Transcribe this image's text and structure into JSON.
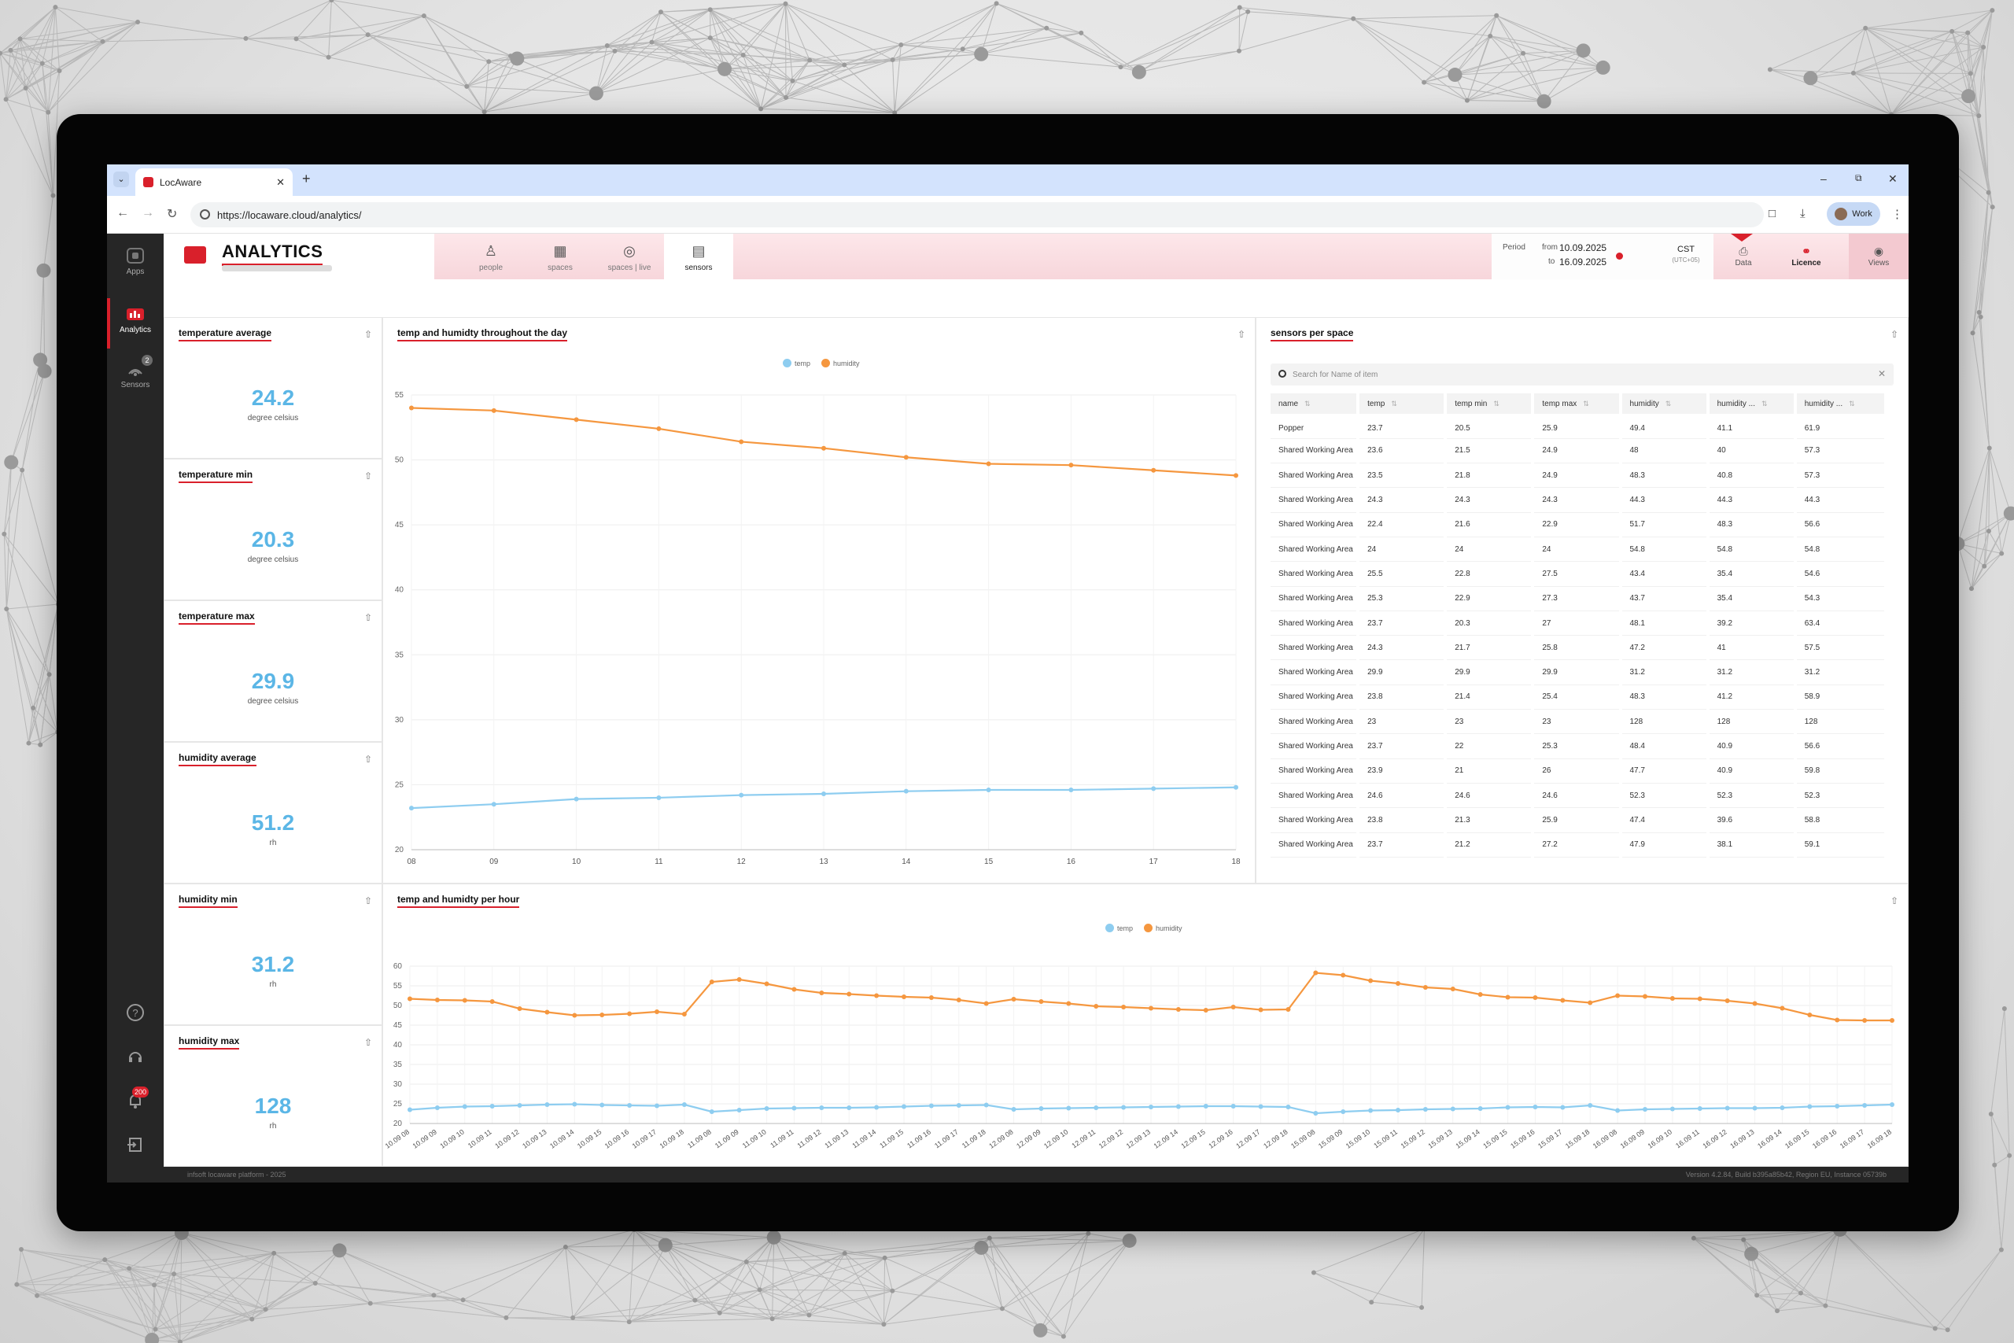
{
  "browser": {
    "tab_title": "LocAware",
    "url": "https://locaware.cloud/analytics/",
    "profile": "Work"
  },
  "sidebar": {
    "items": [
      {
        "label": "Apps",
        "icon": "apps-icon"
      },
      {
        "label": "Analytics",
        "icon": "analytics-icon"
      },
      {
        "label": "Sensors",
        "icon": "sensors-icon",
        "badge": "2"
      }
    ],
    "notifications_badge": "200"
  },
  "header": {
    "title": "ANALYTICS",
    "tabs": [
      {
        "label": "people",
        "icon": "people-icon"
      },
      {
        "label": "spaces",
        "icon": "spaces-icon"
      },
      {
        "label": "spaces | live",
        "icon": "spaces-live-icon"
      },
      {
        "label": "sensors",
        "icon": "sensors-tab-icon",
        "active": true
      }
    ],
    "period": {
      "label": "Period",
      "from_label": "from",
      "to_label": "to",
      "from": "10.09.2025",
      "to": "16.09.2025"
    },
    "timezone": {
      "code": "CST",
      "offset": "(UTC+05)"
    },
    "buttons": {
      "data": "Data",
      "licence": "Licence",
      "views": "Views"
    }
  },
  "kpis": [
    {
      "title": "temperature average",
      "value": "24.2",
      "unit": "degree celsius"
    },
    {
      "title": "temperature min",
      "value": "20.3",
      "unit": "degree celsius"
    },
    {
      "title": "temperature max",
      "value": "29.9",
      "unit": "degree celsius"
    },
    {
      "title": "humidity average",
      "value": "51.2",
      "unit": "rh"
    },
    {
      "title": "humidity min",
      "value": "31.2",
      "unit": "rh"
    },
    {
      "title": "humidity max",
      "value": "128",
      "unit": "rh"
    }
  ],
  "colors": {
    "temp": "#8ecdf0",
    "humidity": "#f5973f",
    "accent": "#d9202b",
    "kpi": "#5bb6e6"
  },
  "chart_data": [
    {
      "type": "line",
      "title": "temp and humidty throughout the day",
      "x": [
        "08",
        "09",
        "10",
        "11",
        "12",
        "13",
        "14",
        "15",
        "16",
        "17",
        "18"
      ],
      "ylim": [
        20,
        55
      ],
      "yticks": [
        20,
        25,
        30,
        35,
        40,
        45,
        50,
        55
      ],
      "series": [
        {
          "name": "temp",
          "values": [
            23.2,
            23.5,
            23.9,
            24.0,
            24.2,
            24.3,
            24.5,
            24.6,
            24.6,
            24.7,
            24.8
          ]
        },
        {
          "name": "humidity",
          "values": [
            54.0,
            53.8,
            53.1,
            52.4,
            51.4,
            50.9,
            50.2,
            49.7,
            49.6,
            49.2,
            48.8
          ]
        }
      ],
      "legend": "top-center",
      "grid": true
    },
    {
      "type": "line",
      "title": "temp and humidty per hour",
      "x": [
        "10.09 08",
        "10.09 09",
        "10.09 10",
        "10.09 11",
        "10.09 12",
        "10.09 13",
        "10.09 14",
        "10.09 15",
        "10.09 16",
        "10.09 17",
        "10.09 18",
        "11.09 08",
        "11.09 09",
        "11.09 10",
        "11.09 11",
        "11.09 12",
        "11.09 13",
        "11.09 14",
        "11.09 15",
        "11.09 16",
        "11.09 17",
        "11.09 18",
        "12.09 08",
        "12.09 09",
        "12.09 10",
        "12.09 11",
        "12.09 12",
        "12.09 13",
        "12.09 14",
        "12.09 15",
        "12.09 16",
        "12.09 17",
        "12.09 18",
        "15.09 08",
        "15.09 09",
        "15.09 10",
        "15.09 11",
        "15.09 12",
        "15.09 13",
        "15.09 14",
        "15.09 15",
        "15.09 16",
        "15.09 17",
        "15.09 18",
        "16.09 08",
        "16.09 09",
        "16.09 10",
        "16.09 11",
        "16.09 12",
        "16.09 13",
        "16.09 14",
        "16.09 15",
        "16.09 16",
        "16.09 17",
        "16.09 18"
      ],
      "ylim": [
        20,
        60
      ],
      "yticks": [
        20,
        25,
        30,
        35,
        40,
        45,
        50,
        55,
        60
      ],
      "series": [
        {
          "name": "temp",
          "values": [
            23.5,
            24.0,
            24.3,
            24.4,
            24.6,
            24.8,
            24.9,
            24.7,
            24.6,
            24.5,
            24.8,
            23.0,
            23.4,
            23.8,
            23.9,
            24.0,
            24.0,
            24.1,
            24.3,
            24.5,
            24.6,
            24.7,
            23.6,
            23.8,
            23.9,
            24.0,
            24.1,
            24.2,
            24.3,
            24.4,
            24.4,
            24.3,
            24.2,
            22.6,
            23.0,
            23.3,
            23.4,
            23.6,
            23.7,
            23.8,
            24.1,
            24.2,
            24.1,
            24.6,
            23.3,
            23.6,
            23.7,
            23.8,
            23.9,
            23.9,
            24.0,
            24.3,
            24.4,
            24.6,
            24.8
          ]
        },
        {
          "name": "humidity",
          "values": [
            51.7,
            51.4,
            51.3,
            51.0,
            49.2,
            48.3,
            47.5,
            47.6,
            47.9,
            48.4,
            47.8,
            56.0,
            56.6,
            55.5,
            54.1,
            53.2,
            52.9,
            52.5,
            52.2,
            52.0,
            51.4,
            50.5,
            51.6,
            51.0,
            50.5,
            49.8,
            49.6,
            49.3,
            49.0,
            48.8,
            49.6,
            48.9,
            49.0,
            58.3,
            57.7,
            56.3,
            55.6,
            54.6,
            54.2,
            52.8,
            52.1,
            52.0,
            51.3,
            50.7,
            52.5,
            52.3,
            51.8,
            51.7,
            51.2,
            50.5,
            49.3,
            47.6,
            46.3,
            46.2,
            46.2
          ]
        }
      ],
      "legend": "top-center",
      "grid": true
    }
  ],
  "sensors_table": {
    "title": "sensors per space",
    "search_placeholder": "Search for Name of item",
    "columns": [
      "name",
      "temp",
      "temp min",
      "temp max",
      "humidity",
      "humidity ...",
      "humidity ..."
    ],
    "rows": [
      [
        "Popper",
        "23.7",
        "20.5",
        "25.9",
        "49.4",
        "41.1",
        "61.9"
      ],
      [
        "Shared Working Area",
        "23.6",
        "21.5",
        "24.9",
        "48",
        "40",
        "57.3"
      ],
      [
        "Shared Working Area",
        "23.5",
        "21.8",
        "24.9",
        "48.3",
        "40.8",
        "57.3"
      ],
      [
        "Shared Working Area",
        "24.3",
        "24.3",
        "24.3",
        "44.3",
        "44.3",
        "44.3"
      ],
      [
        "Shared Working Area",
        "22.4",
        "21.6",
        "22.9",
        "51.7",
        "48.3",
        "56.6"
      ],
      [
        "Shared Working Area",
        "24",
        "24",
        "24",
        "54.8",
        "54.8",
        "54.8"
      ],
      [
        "Shared Working Area",
        "25.5",
        "22.8",
        "27.5",
        "43.4",
        "35.4",
        "54.6"
      ],
      [
        "Shared Working Area",
        "25.3",
        "22.9",
        "27.3",
        "43.7",
        "35.4",
        "54.3"
      ],
      [
        "Shared Working Area",
        "23.7",
        "20.3",
        "27",
        "48.1",
        "39.2",
        "63.4"
      ],
      [
        "Shared Working Area",
        "24.3",
        "21.7",
        "25.8",
        "47.2",
        "41",
        "57.5"
      ],
      [
        "Shared Working Area",
        "29.9",
        "29.9",
        "29.9",
        "31.2",
        "31.2",
        "31.2"
      ],
      [
        "Shared Working Area",
        "23.8",
        "21.4",
        "25.4",
        "48.3",
        "41.2",
        "58.9"
      ],
      [
        "Shared Working Area",
        "23",
        "23",
        "23",
        "128",
        "128",
        "128"
      ],
      [
        "Shared Working Area",
        "23.7",
        "22",
        "25.3",
        "48.4",
        "40.9",
        "56.6"
      ],
      [
        "Shared Working Area",
        "23.9",
        "21",
        "26",
        "47.7",
        "40.9",
        "59.8"
      ],
      [
        "Shared Working Area",
        "24.6",
        "24.6",
        "24.6",
        "52.3",
        "52.3",
        "52.3"
      ],
      [
        "Shared Working Area",
        "23.8",
        "21.3",
        "25.9",
        "47.4",
        "39.6",
        "58.8"
      ],
      [
        "Shared Working Area",
        "23.7",
        "21.2",
        "27.2",
        "47.9",
        "38.1",
        "59.1"
      ]
    ]
  },
  "footer": {
    "left": "infsoft locaware platform - 2025",
    "right": "Version 4.2.84, Build b395a85b42, Region EU, Instance 05739b"
  }
}
